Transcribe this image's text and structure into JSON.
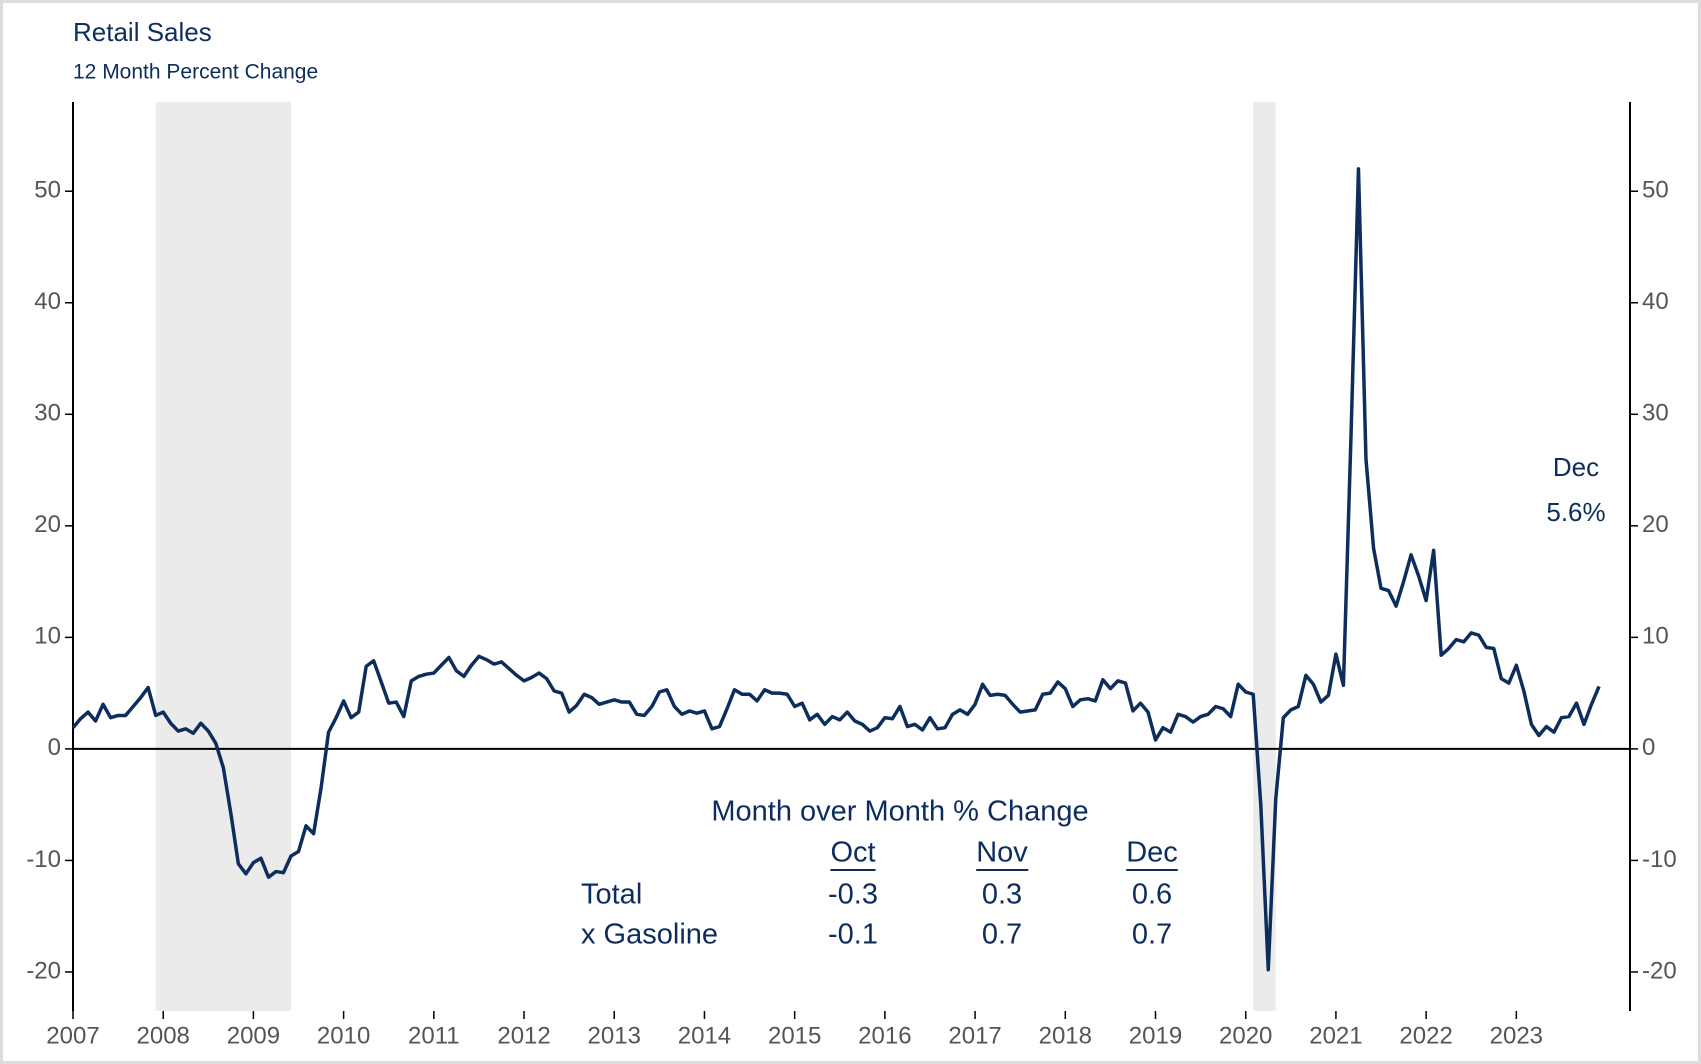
{
  "chart_data": {
    "type": "line",
    "title": "Retail Sales",
    "subtitle": "12 Month Percent Change",
    "color": "#0d2e5c",
    "shading_color": "#ebebeb",
    "shading": [
      [
        2007.917,
        2009.417
      ],
      [
        2020.083,
        2020.333
      ]
    ],
    "xlim": [
      2007,
      2024.26
    ],
    "xticks": [
      2007,
      2008,
      2009,
      2010,
      2011,
      2012,
      2013,
      2014,
      2015,
      2016,
      2017,
      2018,
      2019,
      2020,
      2021,
      2022,
      2023
    ],
    "ylim": [
      -23.5,
      58
    ],
    "yticks": [
      -20,
      -10,
      0,
      10,
      20,
      30,
      40,
      50
    ],
    "right_axis": true,
    "zero_line": true,
    "x": [
      2007,
      2007.083,
      2007.167,
      2007.25,
      2007.333,
      2007.417,
      2007.5,
      2007.583,
      2007.667,
      2007.75,
      2007.833,
      2007.917,
      2008,
      2008.083,
      2008.167,
      2008.25,
      2008.333,
      2008.417,
      2008.5,
      2008.583,
      2008.667,
      2008.75,
      2008.833,
      2008.917,
      2009,
      2009.083,
      2009.167,
      2009.25,
      2009.333,
      2009.417,
      2009.5,
      2009.583,
      2009.667,
      2009.75,
      2009.833,
      2009.917,
      2010,
      2010.083,
      2010.167,
      2010.25,
      2010.333,
      2010.417,
      2010.5,
      2010.583,
      2010.667,
      2010.75,
      2010.833,
      2010.917,
      2011,
      2011.083,
      2011.167,
      2011.25,
      2011.333,
      2011.417,
      2011.5,
      2011.583,
      2011.667,
      2011.75,
      2011.833,
      2011.917,
      2012,
      2012.083,
      2012.167,
      2012.25,
      2012.333,
      2012.417,
      2012.5,
      2012.583,
      2012.667,
      2012.75,
      2012.833,
      2012.917,
      2013,
      2013.083,
      2013.167,
      2013.25,
      2013.333,
      2013.417,
      2013.5,
      2013.583,
      2013.667,
      2013.75,
      2013.833,
      2013.917,
      2014,
      2014.083,
      2014.167,
      2014.25,
      2014.333,
      2014.417,
      2014.5,
      2014.583,
      2014.667,
      2014.75,
      2014.833,
      2014.917,
      2015,
      2015.083,
      2015.167,
      2015.25,
      2015.333,
      2015.417,
      2015.5,
      2015.583,
      2015.667,
      2015.75,
      2015.833,
      2015.917,
      2016,
      2016.083,
      2016.167,
      2016.25,
      2016.333,
      2016.417,
      2016.5,
      2016.583,
      2016.667,
      2016.75,
      2016.833,
      2016.917,
      2017,
      2017.083,
      2017.167,
      2017.25,
      2017.333,
      2017.417,
      2017.5,
      2017.583,
      2017.667,
      2017.75,
      2017.833,
      2017.917,
      2018,
      2018.083,
      2018.167,
      2018.25,
      2018.333,
      2018.417,
      2018.5,
      2018.583,
      2018.667,
      2018.75,
      2018.833,
      2018.917,
      2019,
      2019.083,
      2019.167,
      2019.25,
      2019.333,
      2019.417,
      2019.5,
      2019.583,
      2019.667,
      2019.75,
      2019.833,
      2019.917,
      2020,
      2020.083,
      2020.167,
      2020.25,
      2020.333,
      2020.417,
      2020.5,
      2020.583,
      2020.667,
      2020.75,
      2020.833,
      2020.917,
      2021,
      2021.083,
      2021.167,
      2021.25,
      2021.333,
      2021.417,
      2021.5,
      2021.583,
      2021.667,
      2021.75,
      2021.833,
      2021.917,
      2022,
      2022.083,
      2022.167,
      2022.25,
      2022.333,
      2022.417,
      2022.5,
      2022.583,
      2022.667,
      2022.75,
      2022.833,
      2022.917,
      2023,
      2023.083,
      2023.167,
      2023.25,
      2023.333,
      2023.417,
      2023.5,
      2023.583,
      2023.667,
      2023.75,
      2023.833,
      2023.917
    ],
    "values": [
      1.9,
      2.7,
      3.3,
      2.5,
      4.0,
      2.8,
      3.0,
      3.0,
      3.8,
      4.6,
      5.5,
      3.0,
      3.3,
      2.3,
      1.6,
      1.8,
      1.4,
      2.3,
      1.6,
      0.5,
      -1.7,
      -5.8,
      -10.3,
      -11.2,
      -10.2,
      -9.8,
      -11.5,
      -11.0,
      -11.1,
      -9.6,
      -9.2,
      -6.9,
      -7.6,
      -3.5,
      1.5,
      2.8,
      4.3,
      2.8,
      3.3,
      7.4,
      7.9,
      6.0,
      4.1,
      4.2,
      2.9,
      6.1,
      6.5,
      6.7,
      6.8,
      7.5,
      8.2,
      7.0,
      6.5,
      7.5,
      8.3,
      8.0,
      7.6,
      7.8,
      7.2,
      6.6,
      6.1,
      6.4,
      6.8,
      6.3,
      5.2,
      5.0,
      3.3,
      3.9,
      4.9,
      4.6,
      4.0,
      4.2,
      4.4,
      4.2,
      4.2,
      3.1,
      3.0,
      3.8,
      5.1,
      5.3,
      3.8,
      3.1,
      3.4,
      3.2,
      3.4,
      1.8,
      2.0,
      3.6,
      5.3,
      4.9,
      4.9,
      4.3,
      5.3,
      5.0,
      5.0,
      4.9,
      3.8,
      4.1,
      2.6,
      3.1,
      2.2,
      2.9,
      2.6,
      3.3,
      2.5,
      2.2,
      1.6,
      1.9,
      2.8,
      2.7,
      3.8,
      2.0,
      2.2,
      1.7,
      2.8,
      1.8,
      1.9,
      3.1,
      3.5,
      3.1,
      4.0,
      5.8,
      4.8,
      4.9,
      4.8,
      4.0,
      3.3,
      3.4,
      3.5,
      4.9,
      5.0,
      6.0,
      5.4,
      3.8,
      4.4,
      4.5,
      4.3,
      6.2,
      5.4,
      6.1,
      5.9,
      3.4,
      4.1,
      3.3,
      0.8,
      1.9,
      1.5,
      3.1,
      2.9,
      2.4,
      2.9,
      3.1,
      3.8,
      3.6,
      2.9,
      5.8,
      5.1,
      4.9,
      -5.0,
      -19.8,
      -4.5,
      2.8,
      3.5,
      3.8,
      6.6,
      5.8,
      4.2,
      4.8,
      8.5,
      5.7,
      28.0,
      52.0,
      26.0,
      18.0,
      14.4,
      14.2,
      12.8,
      15.0,
      17.4,
      15.5,
      13.3,
      17.8,
      8.4,
      9.0,
      9.8,
      9.6,
      10.4,
      10.2,
      9.1,
      9.0,
      6.3,
      5.9,
      7.5,
      5.2,
      2.2,
      1.2,
      2.0,
      1.5,
      2.8,
      2.9,
      4.1,
      2.2,
      4.0,
      5.6
    ],
    "annotations": [
      "Dec",
      "5.6%"
    ],
    "table": {
      "title": "Month over Month % Change",
      "columns": [
        "Oct",
        "Nov",
        "Dec"
      ],
      "rows": [
        {
          "label": "Total",
          "values": [
            -0.3,
            0.3,
            0.6
          ]
        },
        {
          "label": "x Gasoline",
          "values": [
            -0.1,
            0.7,
            0.7
          ]
        }
      ]
    }
  }
}
